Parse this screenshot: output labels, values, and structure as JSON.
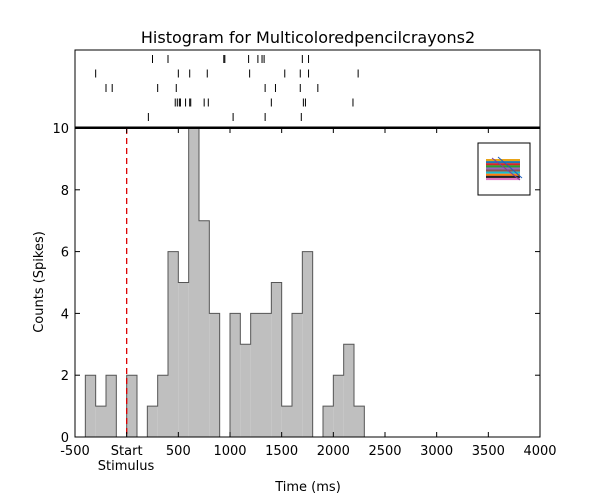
{
  "chart_data": {
    "type": "bar",
    "title": "Histogram for Multicoloredpencilcrayons2",
    "xlabel": "Time (ms)",
    "ylabel": "Counts (Spikes)",
    "xlim": [
      -500,
      4000
    ],
    "ylim": [
      0,
      10
    ],
    "x_ticks": [
      -500,
      0,
      500,
      1000,
      1500,
      2000,
      2500,
      3000,
      3500,
      4000
    ],
    "x_tick_labels": [
      "-500",
      "Start",
      "500",
      "1000",
      "1500",
      "2000",
      "2500",
      "3000",
      "3500",
      "4000"
    ],
    "x_annotation": "Stimulus",
    "y_ticks": [
      0,
      2,
      4,
      6,
      8,
      10
    ],
    "y_tick_labels": [
      "0",
      "2",
      "4",
      "6",
      "8",
      "10"
    ],
    "bin_width": 100,
    "bin_starts": [
      -400,
      -300,
      -200,
      -100,
      0,
      100,
      200,
      300,
      400,
      500,
      600,
      700,
      800,
      900,
      1000,
      1100,
      1200,
      1300,
      1400,
      1500,
      1600,
      1700,
      1800,
      1900,
      2000,
      2100,
      2200
    ],
    "values": [
      2,
      1,
      2,
      0,
      2,
      0,
      1,
      2,
      6,
      5,
      10,
      7,
      4,
      0,
      4,
      3,
      4,
      4,
      5,
      1,
      4,
      6,
      0,
      1,
      2,
      3,
      1
    ],
    "stimulus_line_x": 0,
    "raster_trials": [
      [
        250,
        400,
        940,
        950,
        1180,
        1270,
        1310,
        1330,
        1700,
        1760
      ],
      [
        -300,
        500,
        610,
        780,
        1190,
        1530,
        1680,
        1760,
        2240
      ],
      [
        -200,
        -140,
        300,
        480,
        1340,
        1440,
        1680,
        1850
      ],
      [
        470,
        490,
        510,
        520,
        570,
        610,
        620,
        750,
        790,
        1400,
        1710,
        1730,
        2190
      ],
      [
        210,
        1030,
        1340,
        1690
      ]
    ],
    "colors": {
      "bar_fill": "#bfbfbf",
      "bar_edge": "#555555",
      "stimulus_line": "#dd0000",
      "raster": "#000000"
    }
  },
  "inset": {
    "icon": "multicolored-pencil-crayons-thumbnail",
    "colors": [
      "#e8a317",
      "#1f77b4",
      "#d62728",
      "#2ca02c",
      "#9467bd",
      "#8c564b",
      "#17becf",
      "#ff7f0e",
      "#222222",
      "#e377c2"
    ]
  }
}
